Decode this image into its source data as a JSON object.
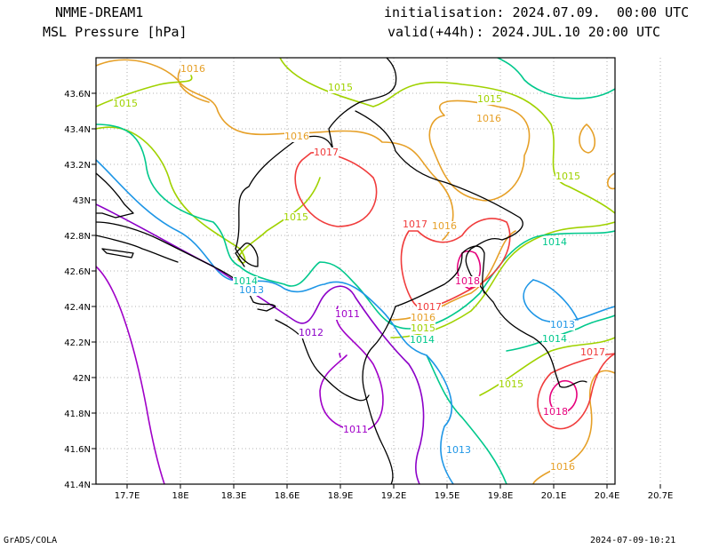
{
  "header": {
    "model": "NMME-DREAM1",
    "field": "MSL Pressure [hPa]",
    "init": "initialisation: 2024.07.09.  00:00 UTC",
    "valid": "valid(+44h): 2024.JUL.10 20:00 UTC"
  },
  "footer": {
    "credit": "GrADS/COLA",
    "timestamp": "2024-07-09-10:21"
  },
  "map": {
    "lon_labels": [
      "17.7E",
      "18E",
      "18.3E",
      "18.6E",
      "18.9E",
      "19.2E",
      "19.5E",
      "19.8E",
      "20.1E",
      "20.4E",
      "20.7E"
    ],
    "lat_labels": [
      "43.6N",
      "43.4N",
      "43.2N",
      "43N",
      "42.8N",
      "42.6N",
      "42.4N",
      "42.2N",
      "42N",
      "41.8N",
      "41.6N",
      "41.4N"
    ],
    "contour_colors": {
      "1011": "#a000c8",
      "1012": "#8c00c8",
      "1013": "#1e96e6",
      "1014": "#00c88c",
      "1015": "#a0d200",
      "1016": "#e6a028",
      "1017": "#f03c3c",
      "1018": "#e6007c"
    },
    "contour_labels": [
      {
        "text": "1016",
        "color": "#e6a028"
      },
      {
        "text": "1015",
        "color": "#a0d200"
      },
      {
        "text": "1015",
        "color": "#a0d200"
      },
      {
        "text": "1015",
        "color": "#a0d200"
      },
      {
        "text": "1016",
        "color": "#e6a028"
      },
      {
        "text": "1016",
        "color": "#e6a028"
      },
      {
        "text": "1017",
        "color": "#f03c3c"
      },
      {
        "text": "1015",
        "color": "#a0d200"
      },
      {
        "text": "1015",
        "color": "#a0d200"
      },
      {
        "text": "1017",
        "color": "#f03c3c"
      },
      {
        "text": "1016",
        "color": "#e6a028"
      },
      {
        "text": "1014",
        "color": "#00c88c"
      },
      {
        "text": "1014",
        "color": "#00c88c"
      },
      {
        "text": "1013",
        "color": "#1e96e6"
      },
      {
        "text": "1018",
        "color": "#e6007c"
      },
      {
        "text": "1011",
        "color": "#a000c8"
      },
      {
        "text": "1017",
        "color": "#f03c3c"
      },
      {
        "text": "1016",
        "color": "#e6a028"
      },
      {
        "text": "1012",
        "color": "#8c00c8"
      },
      {
        "text": "1015",
        "color": "#a0d200"
      },
      {
        "text": "1013",
        "color": "#1e96e6"
      },
      {
        "text": "1014",
        "color": "#00c88c"
      },
      {
        "text": "1014",
        "color": "#00c88c"
      },
      {
        "text": "1017",
        "color": "#f03c3c"
      },
      {
        "text": "1015",
        "color": "#a0d200"
      },
      {
        "text": "1018",
        "color": "#e6007c"
      },
      {
        "text": "1011",
        "color": "#a000c8"
      },
      {
        "text": "1013",
        "color": "#1e96e6"
      },
      {
        "text": "1016",
        "color": "#e6a028"
      }
    ]
  }
}
